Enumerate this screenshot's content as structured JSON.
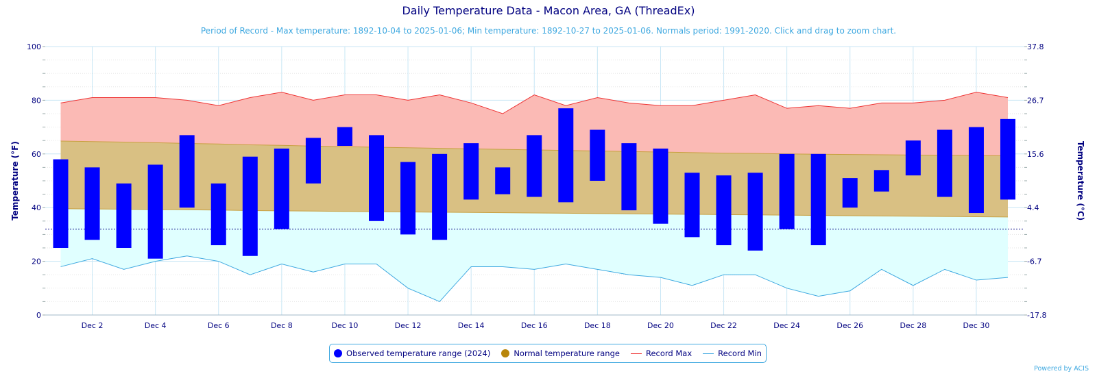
{
  "title": "Daily Temperature Data - Macon Area, GA (ThreadEx)",
  "subtitle": "Period of Record - Max temperature: 1892-10-04 to 2025-01-06; Min temperature: 1892-10-27 to 2025-01-06. Normals period: 1991-2020. Click and drag to zoom chart.",
  "credits": "Powered by ACIS",
  "legend": {
    "observed": "Observed temperature range (2024)",
    "normal": "Normal temperature range",
    "record_max": "Record Max",
    "record_min": "Record Min"
  },
  "colors": {
    "observed": "#0000ff",
    "normal_fill": "#d9c083",
    "normal_legend": "#b8860b",
    "normal_line": "#c8a040",
    "record_max_line": "#ee3333",
    "record_max_fill": "#fbbab5",
    "record_min_line": "#3ea8e0",
    "record_min_fill": "#e0ffff",
    "axis_text": "#000080",
    "grid": "#c8e6f5",
    "freezing_line": "#000080"
  },
  "chart_data": {
    "type": "area",
    "x": [
      1,
      2,
      3,
      4,
      5,
      6,
      7,
      8,
      9,
      10,
      11,
      12,
      13,
      14,
      15,
      16,
      17,
      18,
      19,
      20,
      21,
      22,
      23,
      24,
      25,
      26,
      27,
      28,
      29,
      30,
      31
    ],
    "x_tick_labels": [
      "Dec 2",
      "Dec 4",
      "Dec 6",
      "Dec 8",
      "Dec 10",
      "Dec 12",
      "Dec 14",
      "Dec 16",
      "Dec 18",
      "Dec 20",
      "Dec 22",
      "Dec 24",
      "Dec 26",
      "Dec 28",
      "Dec 30"
    ],
    "x_tick_days": [
      2,
      4,
      6,
      8,
      10,
      12,
      14,
      16,
      18,
      20,
      22,
      24,
      26,
      28,
      30
    ],
    "y_left": {
      "label": "Temperature (°F)",
      "ticks": [
        0,
        20,
        40,
        60,
        80,
        100
      ],
      "range": [
        0,
        100
      ]
    },
    "y_right": {
      "label": "Temperature (°C)",
      "ticks": [
        "-17.8",
        "-6.7",
        "4.4",
        "15.6",
        "26.7",
        "37.8"
      ]
    },
    "freezing_line_f": 32,
    "series": [
      {
        "name": "Observed temperature range (2024)",
        "type": "columnrange",
        "low": [
          25,
          28,
          25,
          21,
          40,
          26,
          22,
          32,
          49,
          63,
          35,
          30,
          28,
          43,
          45,
          44,
          42,
          50,
          39,
          34,
          29,
          26,
          24,
          32,
          26,
          40,
          46,
          52,
          44,
          38,
          43
        ],
        "high": [
          58,
          55,
          49,
          56,
          67,
          49,
          59,
          62,
          66,
          70,
          67,
          57,
          60,
          64,
          55,
          67,
          77,
          69,
          64,
          62,
          53,
          52,
          53,
          60,
          60,
          51,
          54,
          65,
          69,
          70,
          73
        ]
      },
      {
        "name": "Normal temperature range",
        "type": "arearange",
        "low": [
          39.6,
          39.5,
          39.4,
          39.3,
          39.2,
          39.1,
          38.9,
          38.8,
          38.7,
          38.6,
          38.5,
          38.4,
          38.3,
          38.2,
          38.1,
          38.0,
          37.9,
          37.8,
          37.7,
          37.6,
          37.5,
          37.4,
          37.3,
          37.2,
          37.1,
          37.0,
          36.9,
          36.8,
          36.7,
          36.6,
          36.5
        ],
        "high": [
          64.8,
          64.6,
          64.4,
          64.2,
          63.9,
          63.7,
          63.4,
          63.2,
          62.9,
          62.7,
          62.5,
          62.3,
          62.1,
          61.9,
          61.7,
          61.5,
          61.3,
          61.1,
          60.9,
          60.7,
          60.5,
          60.3,
          60.2,
          60.0,
          59.9,
          59.8,
          59.7,
          59.6,
          59.5,
          59.4,
          59.3
        ]
      },
      {
        "name": "Record Max",
        "type": "line",
        "values": [
          79,
          81,
          81,
          81,
          80,
          78,
          81,
          83,
          80,
          82,
          82,
          80,
          82,
          79,
          75,
          82,
          78,
          81,
          79,
          78,
          78,
          80,
          82,
          77,
          78,
          77,
          79,
          79,
          80,
          83,
          81
        ]
      },
      {
        "name": "Record Min",
        "type": "line",
        "values": [
          18,
          21,
          17,
          20,
          22,
          20,
          15,
          19,
          16,
          19,
          19,
          10,
          5,
          18,
          18,
          17,
          19,
          17,
          15,
          14,
          11,
          15,
          15,
          10,
          7,
          9,
          17,
          11,
          17,
          13,
          14
        ]
      }
    ]
  }
}
